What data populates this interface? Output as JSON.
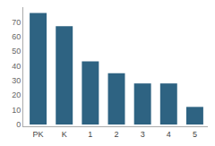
{
  "chart_data": {
    "type": "bar",
    "categories": [
      "PK",
      "K",
      "1",
      "2",
      "3",
      "4",
      "5"
    ],
    "values": [
      76,
      67,
      43,
      35,
      28,
      28,
      12
    ],
    "color": "#2e6382",
    "ylim": [
      0,
      80
    ],
    "yticks": [
      0,
      10,
      20,
      30,
      40,
      50,
      60,
      70
    ],
    "grid": false
  }
}
